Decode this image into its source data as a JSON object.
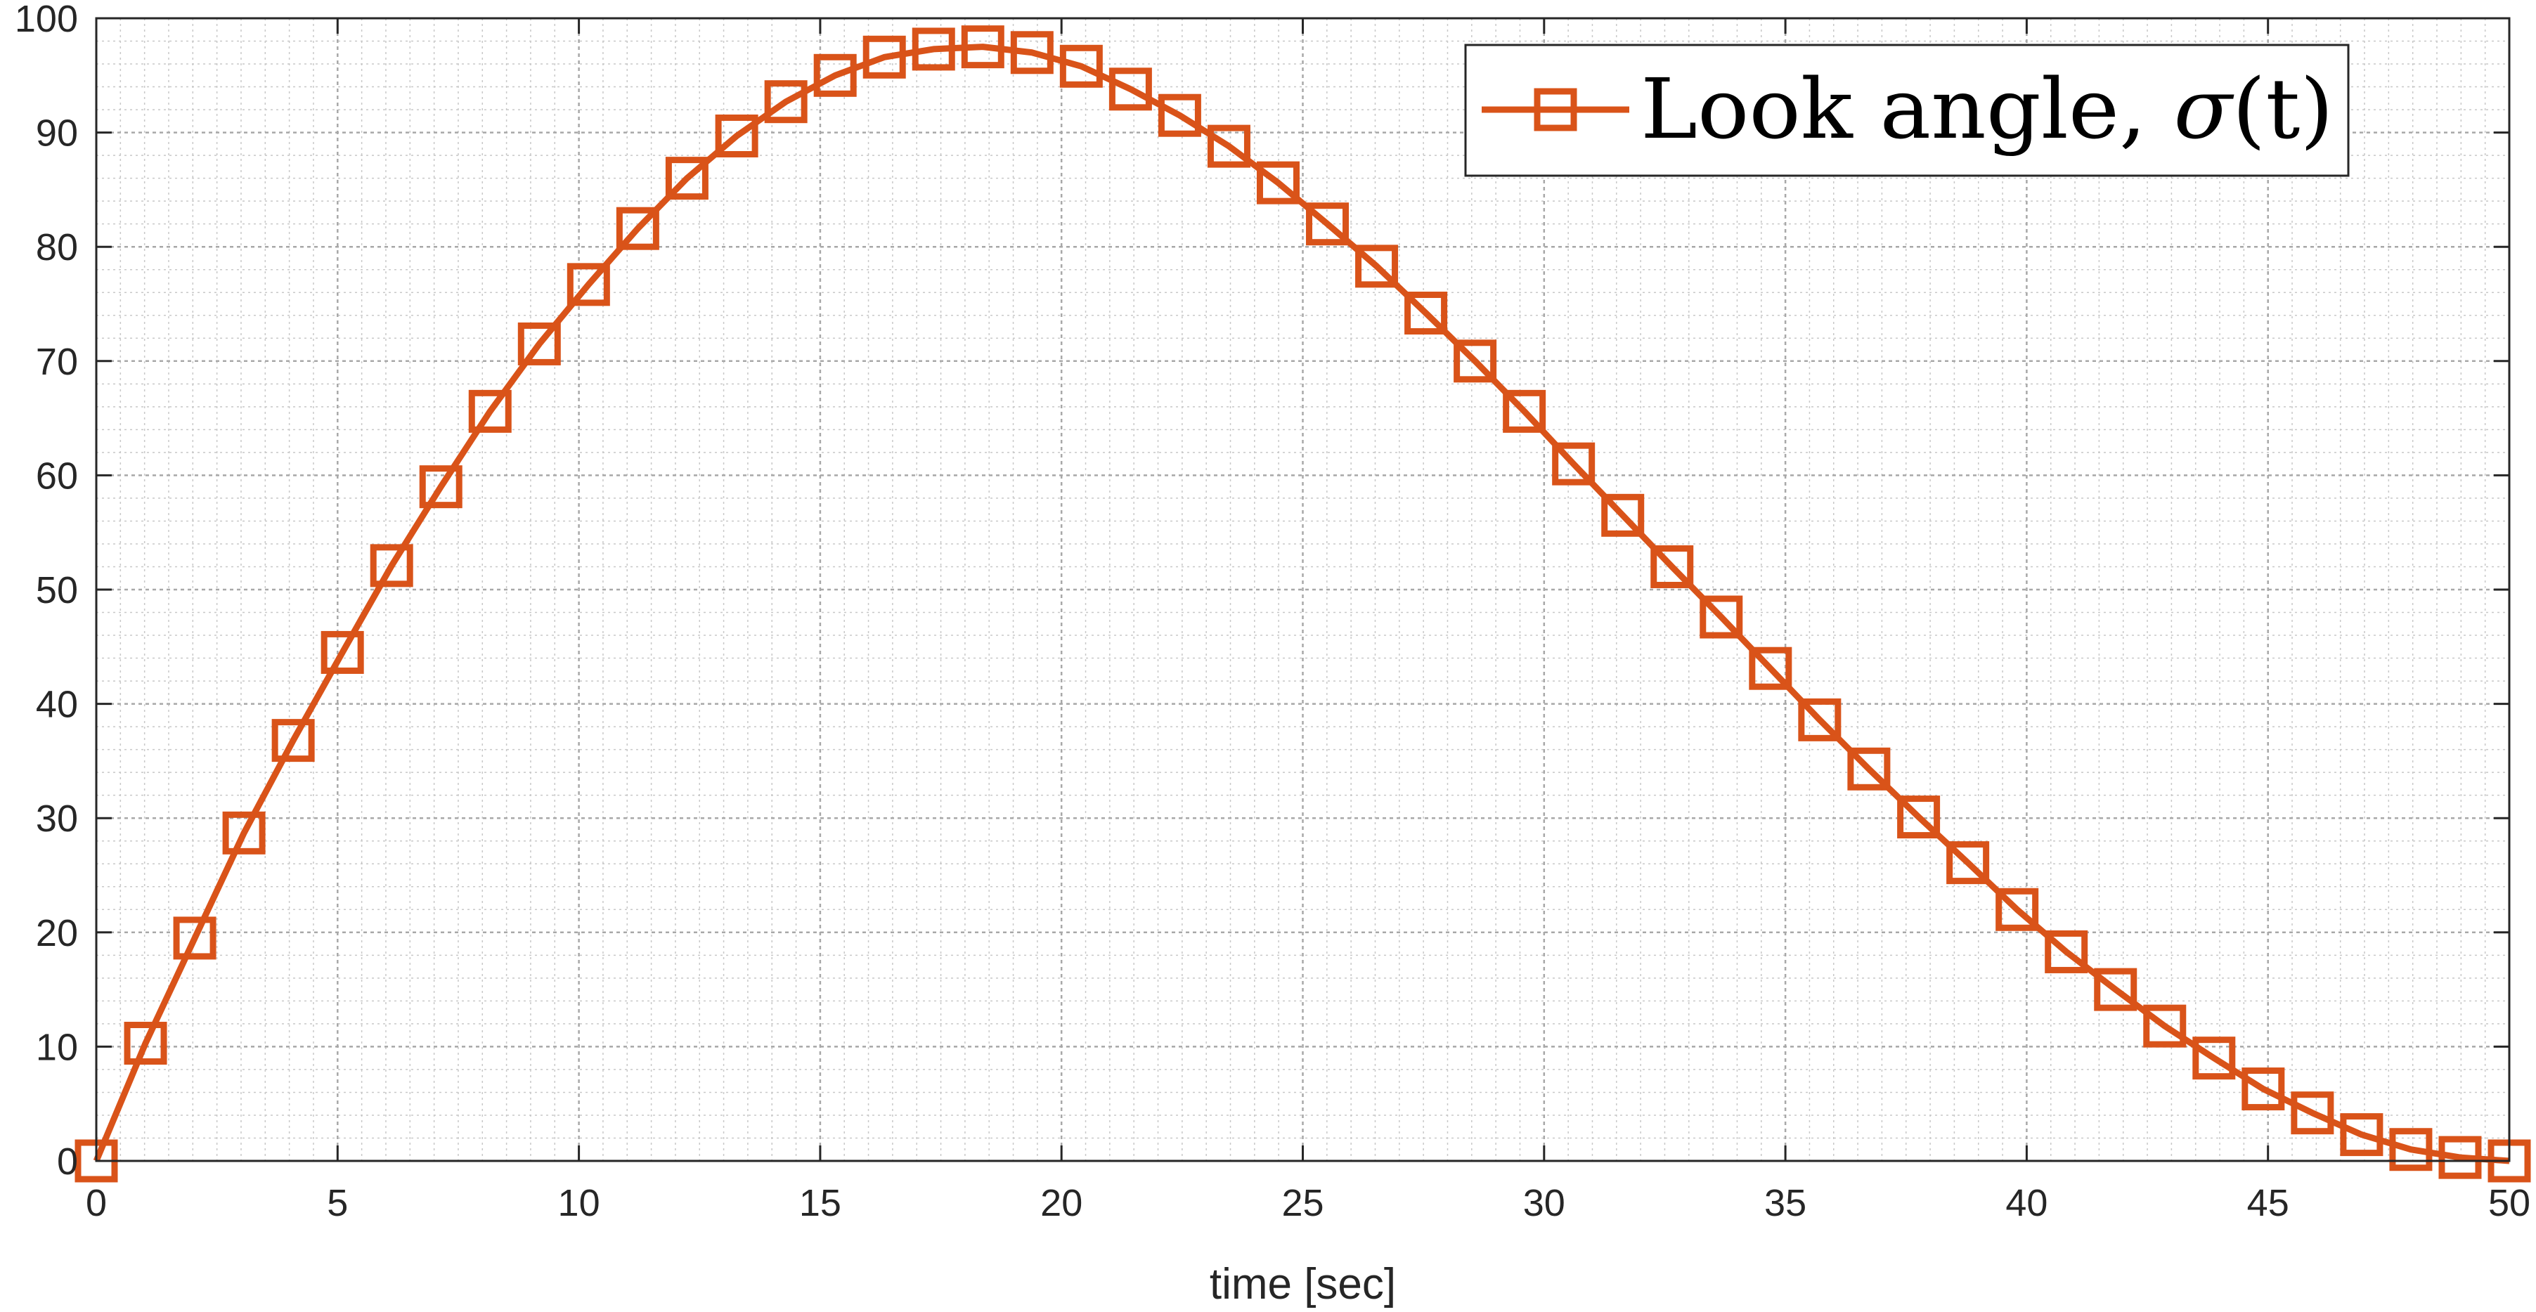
{
  "chart_data": {
    "type": "line",
    "title": "",
    "xlabel": "time [sec]",
    "ylabel": "",
    "xlim": [
      0,
      50
    ],
    "ylim": [
      0,
      100
    ],
    "xticks": [
      0,
      5,
      10,
      15,
      20,
      25,
      30,
      35,
      40,
      45,
      50
    ],
    "yticks": [
      0,
      10,
      20,
      30,
      40,
      50,
      60,
      70,
      80,
      90,
      100
    ],
    "grid": true,
    "minor_grid": true,
    "legend_position": "top-right",
    "series": [
      {
        "name": "Look angle, σ(t)",
        "name_prefix": "Look angle, ",
        "name_symbol": "σ",
        "name_suffix": "(t)",
        "color": "#D95319",
        "marker": "square",
        "x": [
          0,
          1.02,
          2.04,
          3.06,
          4.08,
          5.1,
          6.12,
          7.14,
          8.16,
          9.18,
          10.2,
          11.22,
          12.24,
          13.27,
          14.29,
          15.31,
          16.33,
          17.35,
          18.37,
          19.39,
          20.41,
          21.43,
          22.45,
          23.47,
          24.49,
          25.51,
          26.53,
          27.55,
          28.57,
          29.59,
          30.61,
          31.63,
          32.65,
          33.67,
          34.69,
          35.71,
          36.73,
          37.76,
          38.78,
          39.8,
          40.82,
          41.84,
          42.86,
          43.88,
          44.9,
          45.92,
          46.94,
          47.96,
          48.98,
          50
        ],
        "y": [
          0,
          10.3,
          19.5,
          28.7,
          36.8,
          44.5,
          52.1,
          59,
          65.6,
          71.5,
          76.7,
          81.6,
          86,
          89.7,
          92.7,
          95,
          96.6,
          97.3,
          97.5,
          97,
          95.8,
          93.8,
          91.5,
          88.8,
          85.6,
          82,
          78.3,
          74.2,
          70,
          65.6,
          61,
          56.5,
          52,
          47.6,
          43.1,
          38.6,
          34.3,
          30.1,
          26.1,
          22,
          18.3,
          15,
          11.8,
          9,
          6.3,
          4.2,
          2.3,
          1,
          0.3,
          0
        ]
      }
    ]
  }
}
